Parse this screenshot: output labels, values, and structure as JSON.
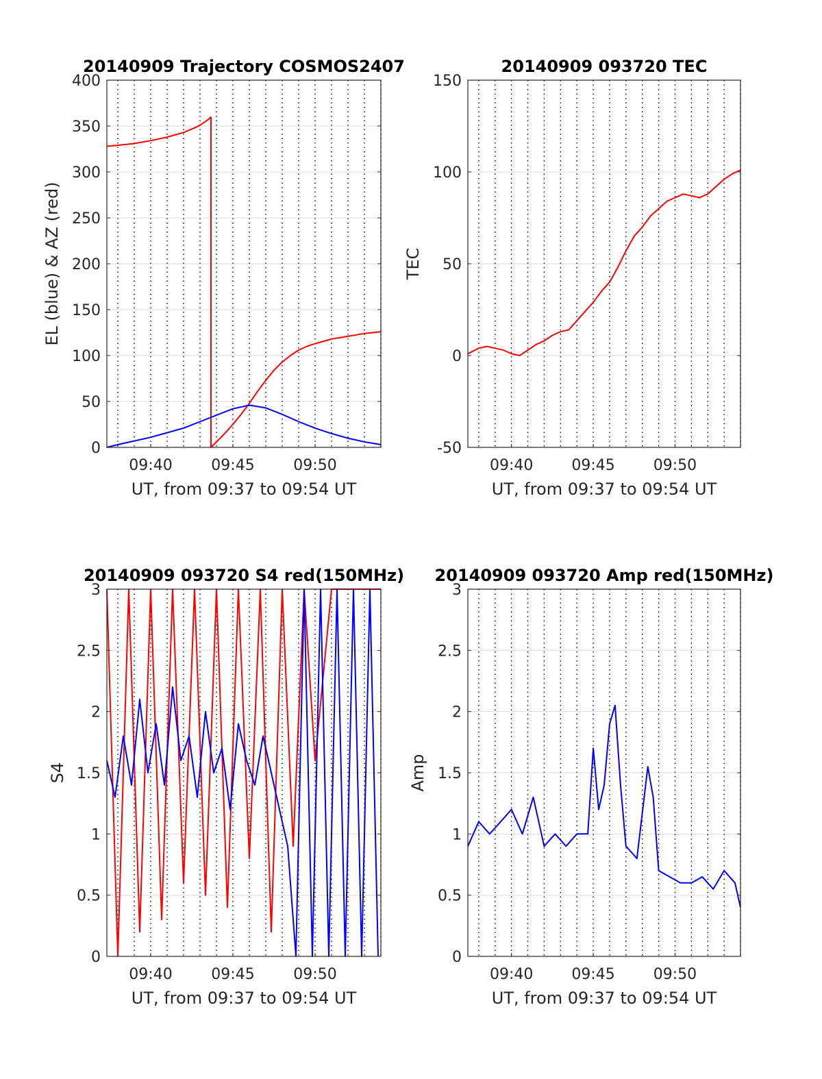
{
  "colors": {
    "azimuth": "#ff0000",
    "elevation": "#0000ff",
    "s4_red": "#ff0000",
    "s4_blue": "#0000ff",
    "tec": "#ff0000",
    "amp": "#0000ff"
  },
  "chart_data": [
    {
      "type": "line",
      "title": "20140909 Trajectory COSMOS2407",
      "xlabel": "UT, from 09:37 to 09:54 UT",
      "ylabel": "EL (blue) & AZ (red)",
      "xlim": [
        "09:37:20",
        "09:54:00"
      ],
      "xticks": [
        "09:40",
        "09:45",
        "09:50"
      ],
      "ylim": [
        0,
        400
      ],
      "yticks": [
        0,
        50,
        100,
        150,
        200,
        250,
        300,
        350,
        400
      ],
      "grid": true,
      "series": [
        {
          "color": "#ff0000",
          "x": [
            "09:37:20",
            "09:38:00",
            "09:39:00",
            "09:40:00",
            "09:41:00",
            "09:42:00",
            "09:42:40",
            "09:43:00",
            "09:43:30",
            "09:43:40"
          ],
          "y": [
            328,
            329,
            331,
            334,
            338,
            343,
            348,
            351,
            357,
            360
          ]
        },
        {
          "color": "#ff0000",
          "x": [
            "09:43:40",
            "09:43:40",
            "09:44:00",
            "09:44:30",
            "09:45:00",
            "09:45:30",
            "09:46:00",
            "09:46:30",
            "09:47:00",
            "09:47:30",
            "09:48:00",
            "09:48:30",
            "09:49:00",
            "09:49:30",
            "09:50:00",
            "09:51:00",
            "09:52:00",
            "09:53:00",
            "09:54:00"
          ],
          "y": [
            360,
            0,
            6,
            15,
            25,
            36,
            48,
            61,
            73,
            84,
            93,
            100,
            106,
            110,
            113,
            118,
            121,
            124,
            126
          ]
        },
        {
          "color": "#0000ff",
          "x": [
            "09:37:20",
            "09:38:00",
            "09:39:00",
            "09:40:00",
            "09:41:00",
            "09:42:00",
            "09:43:00",
            "09:44:00",
            "09:45:00",
            "09:46:00",
            "09:47:00",
            "09:48:00",
            "09:49:00",
            "09:50:00",
            "09:51:00",
            "09:52:00",
            "09:53:00",
            "09:54:00"
          ],
          "y": [
            0,
            3,
            7,
            11,
            16,
            21,
            28,
            35,
            42,
            46,
            43,
            36,
            28,
            21,
            15,
            10,
            6,
            3
          ]
        }
      ]
    },
    {
      "type": "line",
      "title": "20140909 093720 TEC",
      "xlabel": "UT, from 09:37 to 09:54 UT",
      "ylabel": "TEC",
      "xlim": [
        "09:37:20",
        "09:54:00"
      ],
      "xticks": [
        "09:40",
        "09:45",
        "09:50"
      ],
      "ylim": [
        -50,
        150
      ],
      "yticks": [
        -50,
        0,
        50,
        100,
        150
      ],
      "grid": true,
      "series": [
        {
          "color": "#ff0000",
          "x": [
            "09:37:20",
            "09:38:00",
            "09:38:30",
            "09:39:00",
            "09:39:30",
            "09:40:00",
            "09:40:30",
            "09:41:00",
            "09:41:30",
            "09:42:00",
            "09:42:30",
            "09:43:00",
            "09:43:30",
            "09:44:00",
            "09:44:30",
            "09:45:00",
            "09:45:30",
            "09:46:00",
            "09:46:30",
            "09:47:00",
            "09:47:30",
            "09:48:00",
            "09:48:30",
            "09:49:00",
            "09:49:30",
            "09:50:00",
            "09:50:30",
            "09:51:00",
            "09:51:30",
            "09:52:00",
            "09:52:30",
            "09:53:00",
            "09:53:30",
            "09:54:00"
          ],
          "y": [
            1,
            4,
            5,
            4,
            3,
            1,
            0,
            3,
            6,
            8,
            11,
            13,
            14,
            19,
            24,
            29,
            35,
            40,
            48,
            57,
            65,
            70,
            76,
            80,
            84,
            86,
            88,
            87,
            86,
            88,
            92,
            96,
            99,
            101
          ]
        }
      ]
    },
    {
      "type": "line",
      "title": "20140909 093720 S4 red(150MHz)",
      "xlabel": "UT, from 09:37 to 09:54 UT",
      "ylabel": "S4",
      "xlim": [
        "09:37:20",
        "09:54:00"
      ],
      "xticks": [
        "09:40",
        "09:45",
        "09:50"
      ],
      "ylim": [
        0,
        3
      ],
      "yticks": [
        0,
        0.5,
        1,
        1.5,
        2,
        2.5,
        3
      ],
      "grid": true,
      "series": [
        {
          "color": "#ff0000",
          "x": [
            "09:37:20",
            "09:38:00",
            "09:38:40",
            "09:39:20",
            "09:40:00",
            "09:40:40",
            "09:41:20",
            "09:42:00",
            "09:42:40",
            "09:43:20",
            "09:44:00",
            "09:44:40",
            "09:45:20",
            "09:46:00",
            "09:46:40",
            "09:47:20",
            "09:48:00",
            "09:48:40",
            "09:49:20",
            "09:50:00",
            "09:51:00",
            "09:52:00",
            "09:53:00",
            "09:54:00"
          ],
          "y": [
            3,
            0,
            3,
            0.2,
            3,
            0.3,
            3,
            0.6,
            3,
            0.5,
            3,
            0.4,
            3,
            0.8,
            3,
            0.2,
            3,
            0.9,
            3,
            1.6,
            3,
            3,
            3,
            3
          ]
        },
        {
          "color": "#0000ff",
          "x": [
            "09:37:20",
            "09:37:50",
            "09:38:20",
            "09:38:50",
            "09:39:20",
            "09:39:50",
            "09:40:20",
            "09:40:50",
            "09:41:20",
            "09:41:50",
            "09:42:20",
            "09:42:50",
            "09:43:20",
            "09:43:50",
            "09:44:20",
            "09:44:50",
            "09:45:20",
            "09:45:50",
            "09:46:20",
            "09:46:50",
            "09:47:20",
            "09:47:50",
            "09:48:20",
            "09:48:50",
            "09:49:20",
            "09:49:50",
            "09:50:20",
            "09:50:50",
            "09:51:20",
            "09:51:50",
            "09:52:20",
            "09:52:50",
            "09:53:20",
            "09:53:50"
          ],
          "y": [
            1.6,
            1.3,
            1.8,
            1.4,
            2.1,
            1.5,
            1.9,
            1.4,
            2.2,
            1.6,
            1.8,
            1.3,
            2.0,
            1.5,
            1.7,
            1.2,
            1.9,
            1.6,
            1.4,
            1.8,
            1.5,
            1.2,
            0.9,
            0,
            3,
            0,
            3,
            0,
            3,
            0,
            3,
            0,
            3,
            0
          ]
        }
      ]
    },
    {
      "type": "line",
      "title": "20140909 093720 Amp red(150MHz)",
      "xlabel": "UT, from 09:37 to 09:54 UT",
      "ylabel": "Amp",
      "xlim": [
        "09:37:20",
        "09:54:00"
      ],
      "xticks": [
        "09:40",
        "09:45",
        "09:50"
      ],
      "ylim": [
        0,
        3
      ],
      "yticks": [
        0,
        0.5,
        1,
        1.5,
        2,
        2.5,
        3
      ],
      "grid": true,
      "series": [
        {
          "color": "#0000ff",
          "x": [
            "09:37:20",
            "09:38:00",
            "09:38:40",
            "09:39:20",
            "09:40:00",
            "09:40:40",
            "09:41:20",
            "09:42:00",
            "09:42:40",
            "09:43:20",
            "09:44:00",
            "09:44:40",
            "09:45:00",
            "09:45:20",
            "09:45:40",
            "09:46:00",
            "09:46:20",
            "09:46:40",
            "09:47:00",
            "09:47:40",
            "09:48:20",
            "09:48:40",
            "09:49:00",
            "09:49:40",
            "09:50:20",
            "09:51:00",
            "09:51:40",
            "09:52:20",
            "09:53:00",
            "09:53:40",
            "09:54:00"
          ],
          "y": [
            0.9,
            1.1,
            1.0,
            1.1,
            1.2,
            1.0,
            1.3,
            0.9,
            1.0,
            0.9,
            1.0,
            1.0,
            1.7,
            1.2,
            1.4,
            1.9,
            2.05,
            1.4,
            0.9,
            0.8,
            1.55,
            1.3,
            0.7,
            0.65,
            0.6,
            0.6,
            0.65,
            0.55,
            0.7,
            0.6,
            0.4
          ]
        }
      ]
    }
  ]
}
